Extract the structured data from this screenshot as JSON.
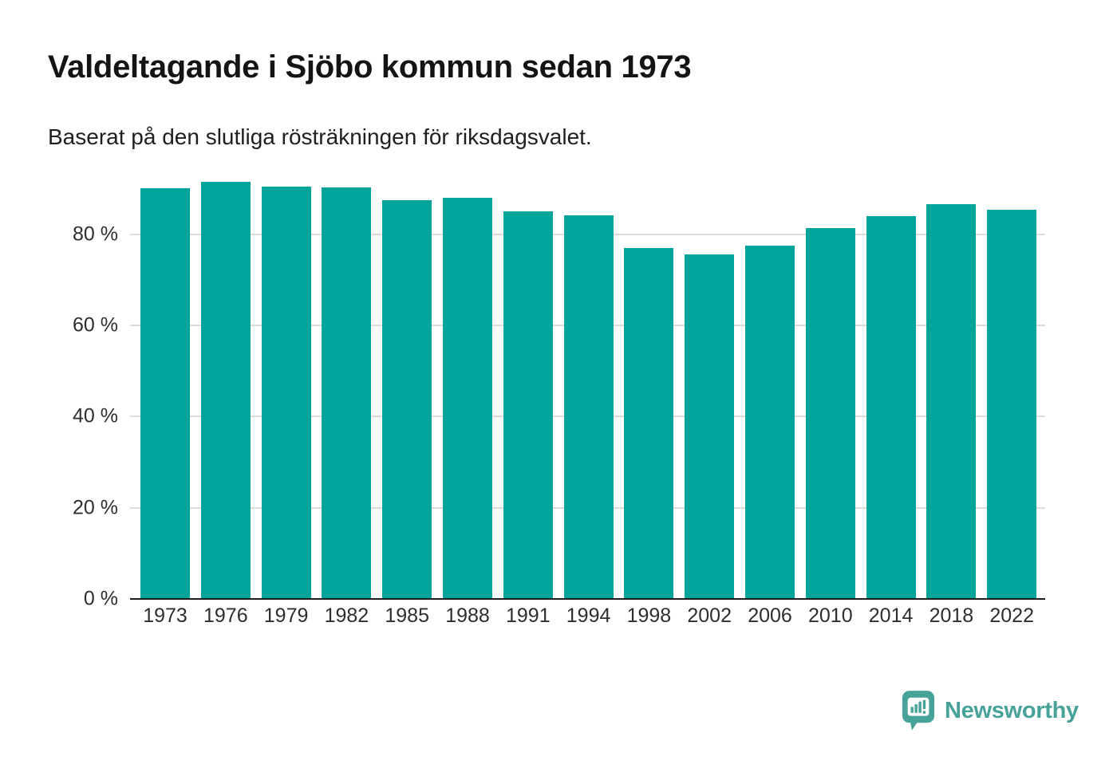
{
  "chart_data": {
    "type": "bar",
    "title": "Valdeltagande i Sjöbo kommun sedan 1973",
    "subtitle": "Baserat på den slutliga rösträkningen för riksdagsvalet.",
    "categories": [
      "1973",
      "1976",
      "1979",
      "1982",
      "1985",
      "1988",
      "1991",
      "1994",
      "1998",
      "2002",
      "2006",
      "2010",
      "2014",
      "2018",
      "2022"
    ],
    "values": [
      90.0,
      91.5,
      90.4,
      90.3,
      87.5,
      87.9,
      85.0,
      84.2,
      77.0,
      75.5,
      77.4,
      81.4,
      84.0,
      86.6,
      85.4
    ],
    "unit": "%",
    "xlabel": "",
    "ylabel": "",
    "yticks": [
      0,
      20,
      40,
      60,
      80
    ],
    "ytick_labels": [
      "0 %",
      "20 %",
      "40 %",
      "60 %",
      "80 %"
    ],
    "ylim": [
      0,
      92
    ],
    "grid": "horizontal",
    "legend": "none",
    "bar_color": "#00a49b",
    "axis_color": "#1c1c1c",
    "gridline_color": "#dcdcdc"
  },
  "footer": {
    "brand_name": "Newsworthy",
    "brand_color": "#47a29a",
    "logo_icon": "speech-bubble-bar-chart-icon"
  }
}
